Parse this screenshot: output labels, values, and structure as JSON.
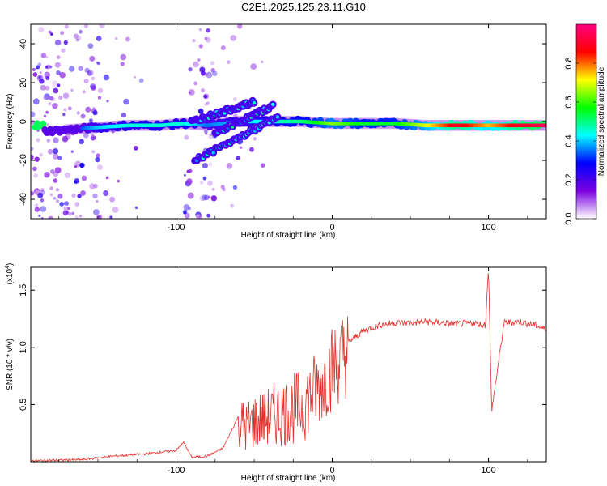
{
  "figure": {
    "title": "C2E1.2025.125.23.11.G10"
  },
  "chart_data": [
    {
      "type": "heatmap",
      "xlabel": "Height of straight line (km)",
      "ylabel": "Frequency (Hz)",
      "xlim": [
        -193,
        137
      ],
      "ylim": [
        -50,
        50
      ],
      "xticks": [
        -100,
        0,
        100
      ],
      "yticks": [
        -40,
        -20,
        0,
        20,
        40
      ],
      "grid": false,
      "colorbar": {
        "label": "Normalized spectral amplitude",
        "range": [
          0,
          1
        ],
        "ticks": [
          "0.0",
          "0.2",
          "0.4",
          "0.6",
          "0.8"
        ],
        "tick_values": [
          0,
          0.2,
          0.4,
          0.6,
          0.8
        ],
        "colors": [
          "#ffffff",
          "#7a00e0",
          "#0000ff",
          "#00ffff",
          "#00ff00",
          "#ffff00",
          "#ff0000",
          "#ff0080"
        ]
      },
      "main_band": [
        {
          "x": -185,
          "f": -5,
          "amp": 0.25
        },
        {
          "x": -165,
          "f": -4,
          "amp": 0.3
        },
        {
          "x": -150,
          "f": -3,
          "amp": 0.4
        },
        {
          "x": -130,
          "f": -2,
          "amp": 0.45
        },
        {
          "x": -110,
          "f": -2,
          "amp": 0.45
        },
        {
          "x": -95,
          "f": -1,
          "amp": 0.45
        },
        {
          "x": -80,
          "f": -2,
          "amp": 0.35
        },
        {
          "x": -60,
          "f": 0,
          "amp": 0.4
        },
        {
          "x": -40,
          "f": 0,
          "amp": 0.45
        },
        {
          "x": -20,
          "f": 0,
          "amp": 0.5
        },
        {
          "x": 0,
          "f": -1,
          "amp": 0.65
        },
        {
          "x": 20,
          "f": -1,
          "amp": 0.55
        },
        {
          "x": 40,
          "f": -1,
          "amp": 0.55
        },
        {
          "x": 60,
          "f": -2,
          "amp": 0.7
        },
        {
          "x": 80,
          "f": -2,
          "amp": 0.9
        },
        {
          "x": 100,
          "f": -2,
          "amp": 0.75
        },
        {
          "x": 120,
          "f": -2,
          "amp": 0.9
        },
        {
          "x": 135,
          "f": -2,
          "amp": 0.95
        }
      ],
      "side_branches": [
        {
          "from": [
            -90,
            0
          ],
          "to": [
            -50,
            10
          ]
        },
        {
          "from": [
            -88,
            -20
          ],
          "to": [
            -35,
            2
          ]
        },
        {
          "from": [
            -75,
            -6
          ],
          "to": [
            -38,
            8
          ]
        }
      ]
    },
    {
      "type": "line",
      "xlabel": "Height of straight line (km)",
      "ylabel": "SNR (10 * v/v)",
      "y_multiplier_label": "(x10",
      "y_multiplier_exp": "4",
      "y_multiplier_close": ")",
      "xlim": [
        -193,
        137
      ],
      "ylim": [
        0,
        1.7
      ],
      "xticks": [
        -100,
        0,
        100
      ],
      "yticks": [
        "0.5",
        "1.0",
        "1.5"
      ],
      "ytick_values": [
        0.5,
        1.0,
        1.5
      ],
      "color": "#e0302b",
      "grid": false,
      "x": [
        -193,
        -160,
        -140,
        -120,
        -100,
        -95,
        -90,
        -80,
        -70,
        -60,
        -55,
        -50,
        -40,
        -30,
        -20,
        -10,
        0,
        10,
        20,
        30,
        40,
        50,
        60,
        70,
        80,
        90,
        98,
        100,
        102,
        110,
        120,
        130,
        137
      ],
      "values": [
        0.01,
        0.02,
        0.05,
        0.07,
        0.1,
        0.17,
        0.04,
        0.05,
        0.12,
        0.4,
        0.35,
        0.4,
        0.45,
        0.5,
        0.55,
        0.7,
        0.9,
        1.05,
        1.15,
        1.2,
        1.22,
        1.22,
        1.23,
        1.22,
        1.21,
        1.22,
        1.2,
        1.7,
        0.45,
        1.22,
        1.23,
        1.2,
        1.16
      ]
    }
  ]
}
